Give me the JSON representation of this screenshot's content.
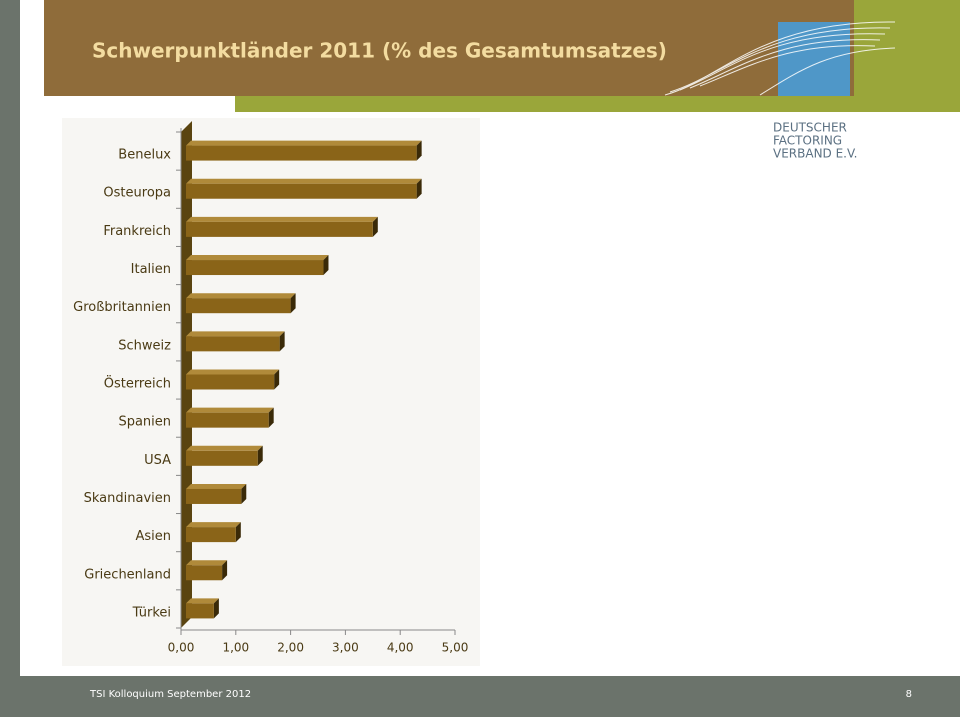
{
  "header": {
    "title": "Schwerpunktländer 2011 (% des Gesamtumsatzes)"
  },
  "logo": {
    "lines": [
      "DEUTSCHER",
      "FACTORING",
      "VERBAND E.V."
    ]
  },
  "footer": {
    "left": "TSI Kolloquium September 2012",
    "page": "8"
  },
  "chart_data": {
    "type": "bar",
    "orientation": "horizontal",
    "color": "#8a6418",
    "categories": [
      "Benelux",
      "Osteuropa",
      "Frankreich",
      "Italien",
      "Großbritannien",
      "Schweiz",
      "Österreich",
      "Spanien",
      "USA",
      "Skandinavien",
      "Asien",
      "Griechenland",
      "Türkei"
    ],
    "values": [
      4.3,
      4.3,
      3.5,
      2.6,
      2.0,
      1.8,
      1.7,
      1.6,
      1.4,
      1.1,
      1.0,
      0.75,
      0.6
    ],
    "xlim": [
      0,
      5
    ],
    "xticks": [
      {
        "value": 0,
        "label": "0,00"
      },
      {
        "value": 1,
        "label": "1,00"
      },
      {
        "value": 2,
        "label": "2,00"
      },
      {
        "value": 3,
        "label": "3,00"
      },
      {
        "value": 4,
        "label": "4,00"
      },
      {
        "value": 5,
        "label": "5,00"
      }
    ]
  }
}
